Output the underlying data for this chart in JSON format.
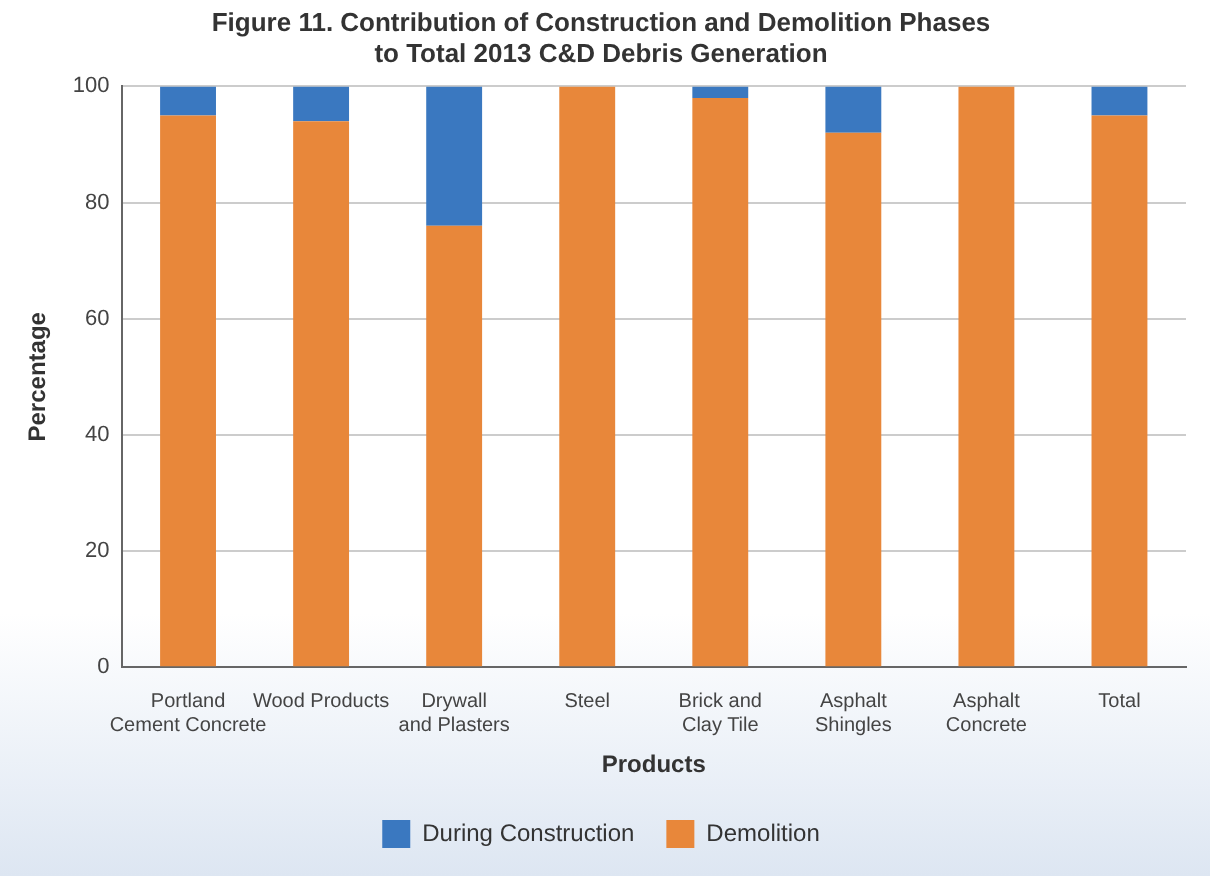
{
  "chart_data": {
    "type": "bar",
    "stacked": true,
    "title": "Figure 11. Contribution of Construction and Demolition Phases\nto Total 2013 C&D Debris Generation",
    "categories": [
      "Portland\nCement Concrete",
      "Wood Products",
      "Drywall\nand Plasters",
      "Steel",
      "Brick and\nClay Tile",
      "Asphalt\nShingles",
      "Asphalt\nConcrete",
      "Total"
    ],
    "series": [
      {
        "name": "Demolition",
        "color": "#e8873a",
        "values": [
          95,
          94,
          76,
          100,
          98,
          92,
          100,
          95
        ]
      },
      {
        "name": "During Construction",
        "color": "#3a78c0",
        "values": [
          5,
          6,
          24,
          0,
          2,
          8,
          0,
          5
        ]
      }
    ],
    "xlabel": "Products",
    "ylabel": "Percentage",
    "ylim": [
      0,
      100
    ],
    "yticks": [
      0,
      20,
      40,
      60,
      80,
      100
    ],
    "grid": "y",
    "legend": "bottom"
  }
}
